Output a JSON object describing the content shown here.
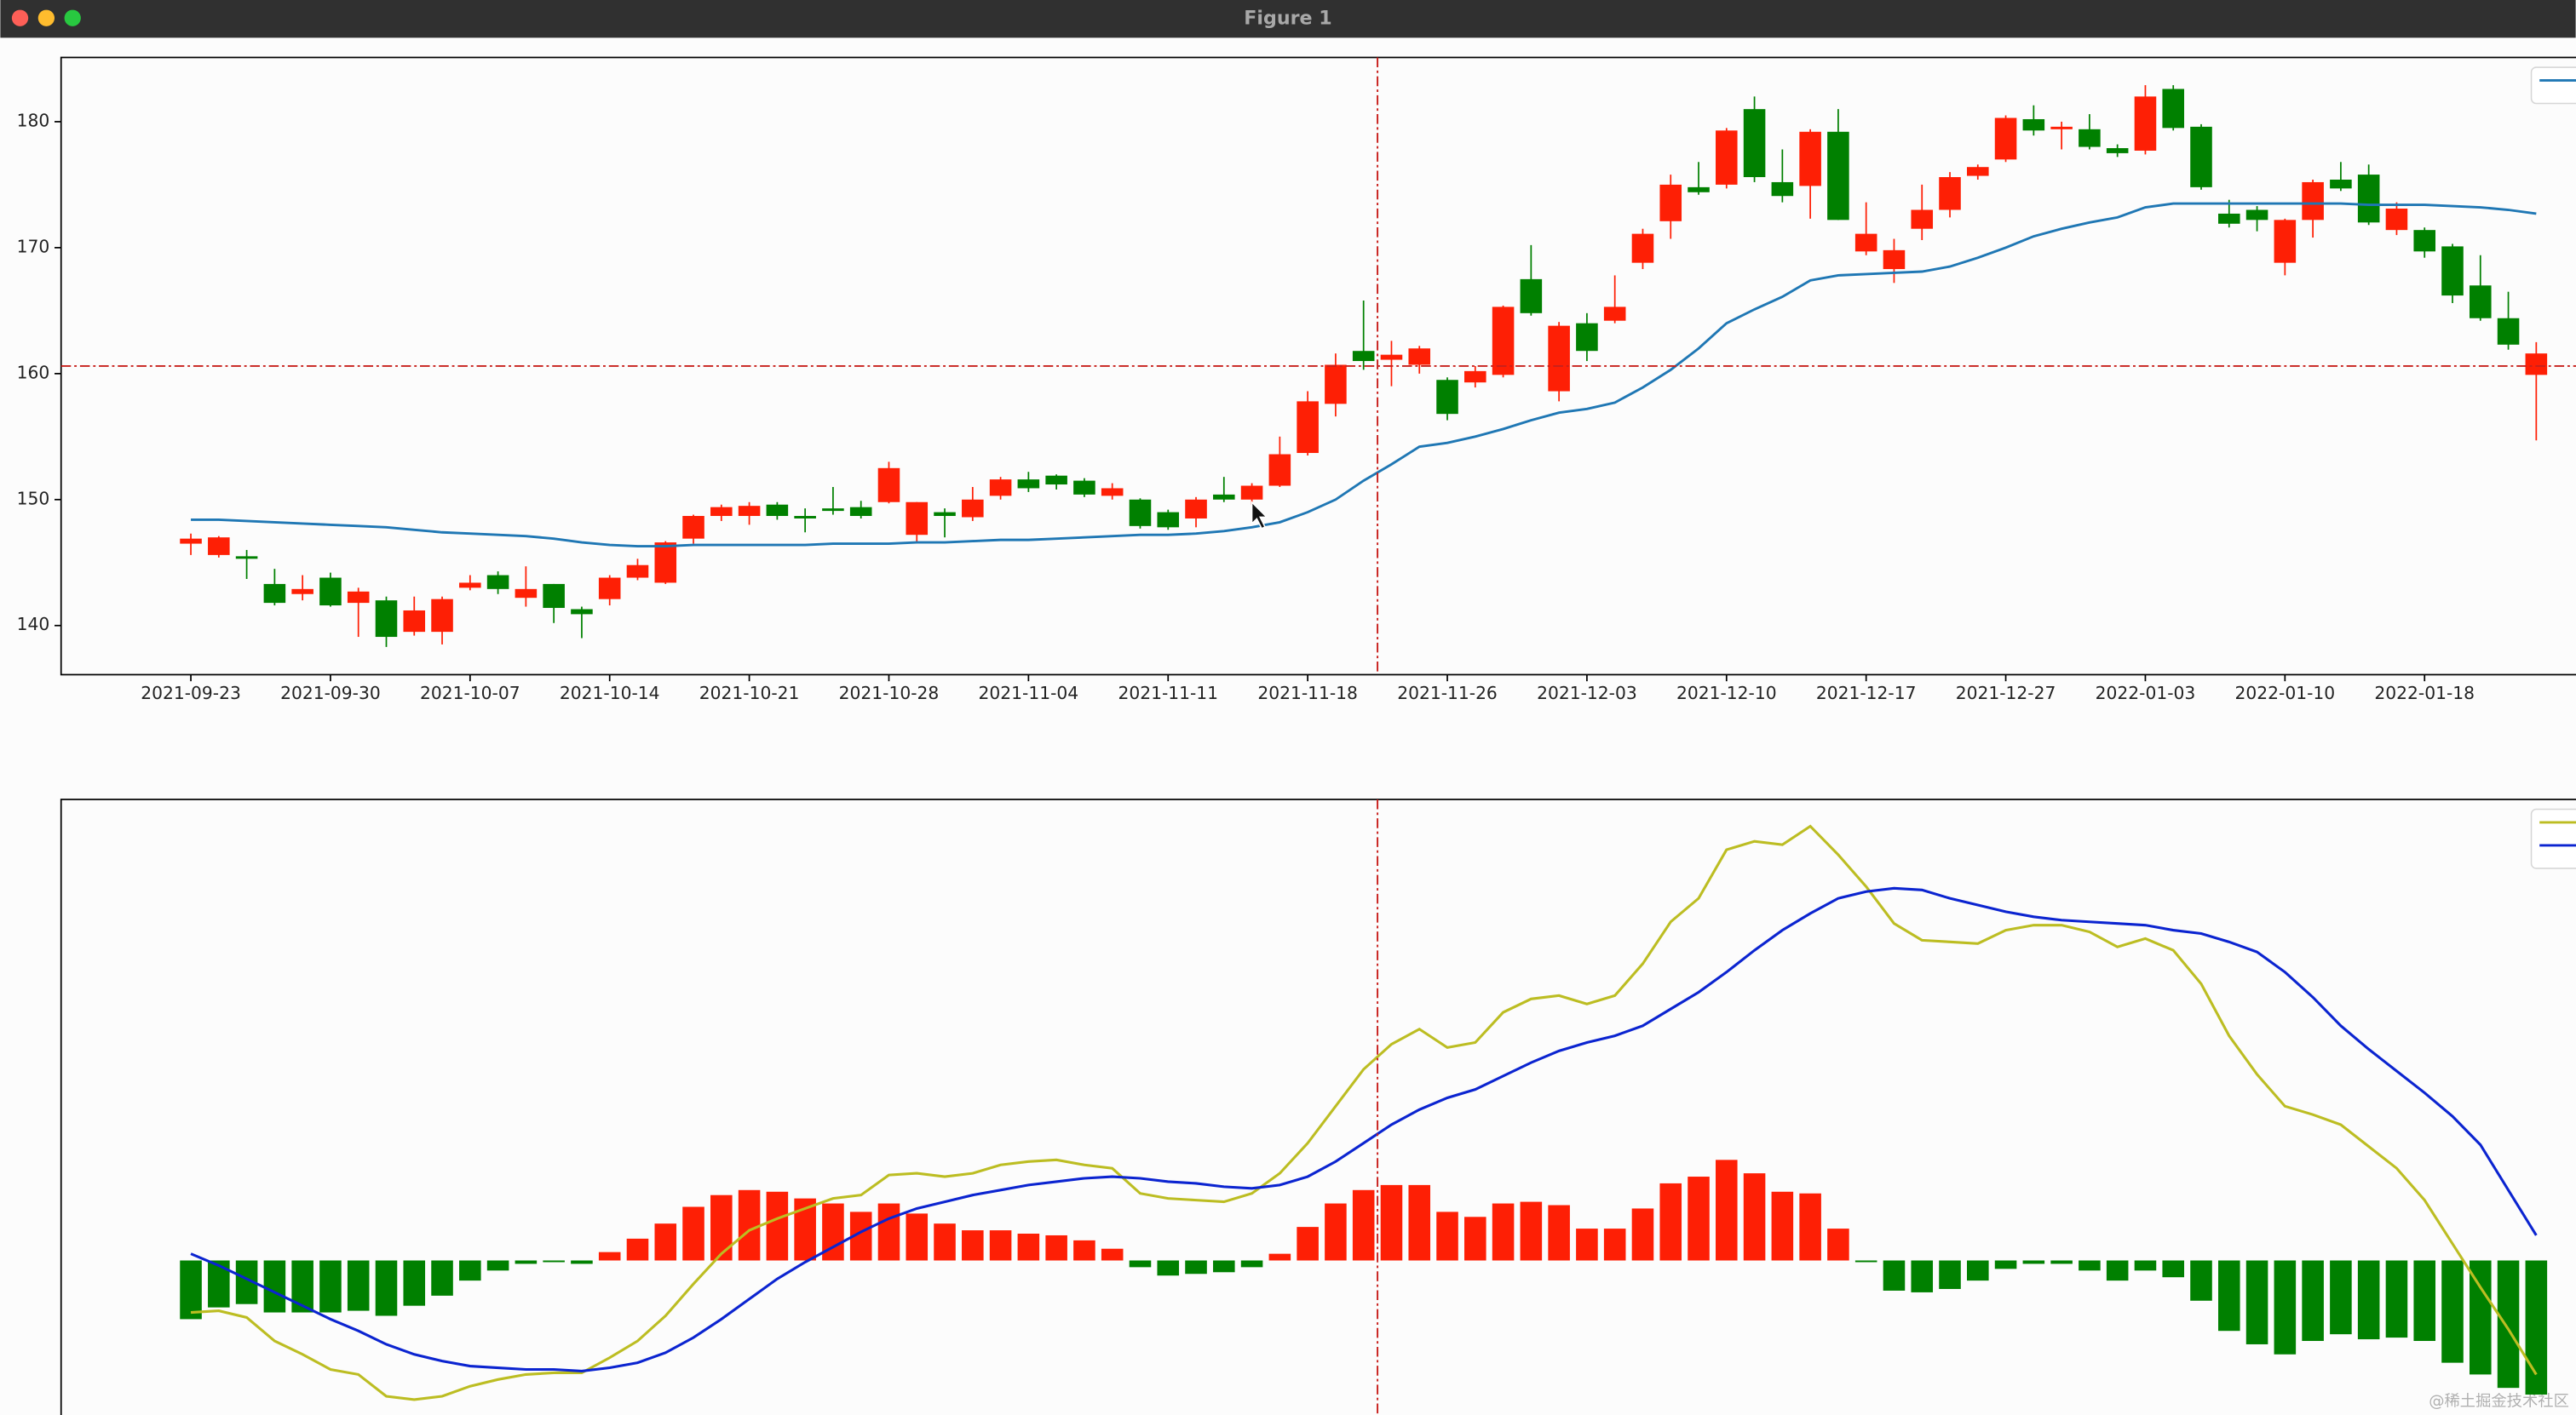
{
  "window": {
    "title": "Figure 1"
  },
  "watermark": "@稀土掘金技术社区",
  "chart_data": [
    {
      "type": "candlestick",
      "categories": [
        "2021-09-23",
        null,
        null,
        null,
        null,
        "2021-09-30",
        null,
        null,
        null,
        null,
        "2021-10-07",
        null,
        null,
        null,
        null,
        "2021-10-14",
        null,
        null,
        null,
        null,
        "2021-10-21",
        null,
        null,
        null,
        null,
        "2021-10-28",
        null,
        null,
        null,
        null,
        "2021-11-04",
        null,
        null,
        null,
        null,
        "2021-11-11",
        null,
        null,
        null,
        null,
        "2021-11-18",
        null,
        null,
        null,
        null,
        "2021-11-26",
        null,
        null,
        null,
        null,
        "2021-12-03",
        null,
        null,
        null,
        null,
        "2021-12-10",
        null,
        null,
        null,
        null,
        "2021-12-17",
        null,
        null,
        null,
        null,
        "2021-12-27",
        null,
        null,
        null,
        null,
        "2022-01-03",
        null,
        null,
        null,
        null,
        "2022-01-10",
        null,
        null,
        null,
        null,
        "2022-01-18",
        null,
        null,
        null,
        null
      ],
      "open": [
        146.5,
        145.6,
        145.5,
        143.3,
        142.5,
        143.8,
        141.8,
        142.0,
        139.5,
        139.5,
        143.0,
        144.0,
        142.2,
        143.3,
        141.3,
        142.1,
        143.8,
        143.4,
        146.9,
        148.7,
        148.7,
        149.6,
        148.7,
        149.3,
        149.4,
        149.8,
        147.2,
        149.0,
        148.6,
        150.3,
        151.6,
        151.9,
        151.5,
        150.3,
        150.0,
        149.0,
        148.5,
        150.4,
        150.0,
        151.1,
        153.7,
        157.6,
        161.8,
        161.1,
        160.7,
        159.5,
        159.3,
        159.9,
        167.5,
        158.6,
        164.0,
        164.2,
        168.8,
        172.1,
        174.8,
        175.0,
        181.0,
        175.2,
        174.9,
        179.2,
        169.7,
        168.3,
        171.5,
        173.0,
        175.7,
        177.0,
        180.2,
        179.4,
        179.4,
        177.9,
        177.7,
        182.6,
        179.6,
        172.7,
        173.0,
        168.8,
        172.2,
        175.4,
        175.8,
        171.4,
        171.4,
        170.1,
        167.0,
        164.4,
        159.9
      ],
      "high": [
        147.3,
        147.1,
        146.0,
        144.5,
        144.0,
        144.2,
        143.0,
        142.3,
        142.3,
        142.3,
        144.0,
        144.3,
        144.7,
        143.3,
        141.5,
        144.0,
        145.3,
        146.7,
        148.8,
        149.6,
        149.8,
        149.8,
        149.3,
        151.0,
        149.9,
        153.0,
        149.8,
        149.3,
        151.0,
        151.8,
        152.2,
        152.0,
        151.7,
        151.3,
        150.1,
        149.2,
        150.2,
        151.8,
        151.3,
        155.0,
        158.6,
        161.6,
        165.8,
        162.6,
        162.2,
        159.7,
        160.6,
        165.4,
        170.2,
        164.1,
        164.8,
        167.8,
        171.5,
        175.8,
        176.8,
        179.5,
        182.0,
        177.8,
        179.4,
        181.0,
        173.6,
        170.7,
        175.0,
        176.0,
        176.6,
        180.5,
        181.3,
        180.0,
        180.6,
        178.2,
        182.9,
        182.9,
        179.8,
        173.8,
        173.3,
        172.3,
        175.4,
        176.8,
        176.6,
        173.6,
        171.6,
        170.3,
        169.4,
        166.5,
        162.5
      ],
      "low": [
        145.6,
        145.4,
        143.7,
        141.6,
        142.0,
        141.5,
        139.1,
        138.3,
        139.2,
        138.5,
        142.8,
        142.5,
        141.5,
        140.2,
        139.0,
        141.6,
        143.6,
        143.3,
        146.5,
        148.3,
        148.0,
        148.4,
        147.4,
        148.8,
        148.5,
        149.7,
        146.6,
        147.0,
        148.3,
        150.0,
        150.6,
        150.8,
        150.2,
        150.0,
        147.7,
        147.6,
        147.8,
        149.8,
        149.6,
        151.0,
        153.5,
        156.6,
        160.3,
        159.0,
        160.0,
        156.3,
        158.9,
        159.7,
        164.6,
        157.8,
        161.0,
        164.0,
        168.3,
        170.7,
        174.2,
        174.7,
        175.2,
        173.6,
        172.3,
        172.2,
        169.4,
        167.2,
        170.6,
        172.4,
        175.4,
        176.8,
        178.9,
        177.8,
        177.8,
        177.2,
        177.4,
        179.3,
        174.6,
        171.6,
        171.3,
        167.8,
        170.8,
        174.5,
        171.8,
        171.0,
        169.2,
        165.6,
        164.2,
        161.9,
        154.7
      ],
      "close": [
        146.9,
        147.0,
        145.3,
        141.8,
        142.9,
        141.6,
        142.7,
        139.1,
        141.2,
        142.1,
        143.4,
        142.9,
        142.9,
        141.4,
        140.9,
        143.8,
        144.8,
        146.6,
        148.7,
        149.4,
        149.5,
        148.7,
        148.5,
        149.1,
        148.7,
        152.5,
        149.8,
        148.7,
        150.0,
        151.6,
        150.9,
        151.2,
        150.4,
        150.9,
        147.9,
        147.8,
        150.0,
        150.0,
        151.1,
        153.6,
        157.8,
        160.7,
        161.0,
        161.5,
        162.0,
        156.8,
        160.2,
        165.3,
        164.8,
        163.8,
        161.8,
        165.3,
        171.1,
        175.0,
        174.4,
        179.3,
        175.6,
        174.1,
        179.2,
        172.2,
        171.1,
        169.8,
        173.0,
        175.6,
        176.4,
        180.3,
        179.3,
        179.6,
        178.0,
        177.5,
        182.0,
        179.5,
        174.8,
        171.9,
        172.2,
        172.2,
        175.2,
        174.7,
        172.0,
        173.1,
        169.7,
        166.2,
        164.4,
        162.3,
        161.6
      ],
      "up_color": "#fe1f05",
      "down_color": "#008000",
      "series": [
        {
          "color": "#1f77b4",
          "values": [
            148.4,
            148.4,
            148.3,
            148.2,
            148.1,
            148.0,
            147.9,
            147.8,
            147.6,
            147.4,
            147.3,
            147.2,
            147.1,
            146.9,
            146.6,
            146.4,
            146.3,
            146.3,
            146.4,
            146.4,
            146.4,
            146.4,
            146.4,
            146.5,
            146.5,
            146.5,
            146.6,
            146.6,
            146.7,
            146.8,
            146.8,
            146.9,
            147.0,
            147.1,
            147.2,
            147.2,
            147.3,
            147.5,
            147.8,
            148.2,
            149.0,
            150.0,
            151.5,
            152.8,
            154.2,
            154.5,
            155.0,
            155.6,
            156.3,
            156.9,
            157.2,
            157.7,
            158.9,
            160.3,
            162.0,
            164.0,
            165.1,
            166.1,
            167.4,
            167.8,
            167.9,
            168.0,
            168.1,
            168.5,
            169.2,
            170.0,
            170.9,
            171.5,
            172.0,
            172.4,
            173.2,
            173.5,
            173.5,
            173.5,
            173.5,
            173.5,
            173.5,
            173.5,
            173.4,
            173.4,
            173.4,
            173.3,
            173.2,
            173.0,
            172.7
          ]
        }
      ],
      "ylim": [
        136.1,
        185.1
      ],
      "yticks": [
        140,
        150,
        160,
        170,
        180
      ],
      "legend": "upper right",
      "cursor": {
        "x": 42.5,
        "y": 160.6,
        "color": "#c8201c"
      }
    },
    {
      "type": "macd",
      "histogram": [
        -0.35,
        -0.28,
        -0.26,
        -0.31,
        -0.31,
        -0.31,
        -0.3,
        -0.33,
        -0.27,
        -0.21,
        -0.12,
        -0.06,
        -0.02,
        -0.01,
        -0.02,
        0.05,
        0.13,
        0.22,
        0.32,
        0.39,
        0.42,
        0.41,
        0.37,
        0.34,
        0.29,
        0.34,
        0.28,
        0.22,
        0.18,
        0.18,
        0.16,
        0.15,
        0.12,
        0.07,
        -0.04,
        -0.09,
        -0.08,
        -0.07,
        -0.04,
        0.04,
        0.2,
        0.34,
        0.42,
        0.45,
        0.45,
        0.29,
        0.26,
        0.34,
        0.35,
        0.33,
        0.19,
        0.19,
        0.31,
        0.46,
        0.5,
        0.6,
        0.52,
        0.41,
        0.4,
        0.19,
        -0.01,
        -0.18,
        -0.19,
        -0.17,
        -0.12,
        -0.05,
        -0.02,
        -0.02,
        -0.06,
        -0.12,
        -0.06,
        -0.1,
        -0.24,
        -0.42,
        -0.5,
        -0.56,
        -0.48,
        -0.44,
        -0.47,
        -0.46,
        -0.48,
        -0.61,
        -0.68,
        -0.76,
        -0.8
      ],
      "up_color": "#fe1f05",
      "down_color": "#008000",
      "series": [
        {
          "color": "#bcbd22",
          "values": [
            -0.31,
            -0.3,
            -0.34,
            -0.48,
            -0.56,
            -0.65,
            -0.68,
            -0.81,
            -0.83,
            -0.81,
            -0.75,
            -0.71,
            -0.68,
            -0.67,
            -0.67,
            -0.58,
            -0.48,
            -0.33,
            -0.14,
            0.04,
            0.18,
            0.25,
            0.31,
            0.37,
            0.39,
            0.51,
            0.52,
            0.5,
            0.52,
            0.57,
            0.59,
            0.6,
            0.57,
            0.55,
            0.4,
            0.37,
            0.36,
            0.35,
            0.4,
            0.52,
            0.7,
            0.92,
            1.14,
            1.29,
            1.38,
            1.27,
            1.3,
            1.48,
            1.56,
            1.58,
            1.53,
            1.58,
            1.77,
            2.02,
            2.16,
            2.45,
            2.5,
            2.48,
            2.59,
            2.42,
            2.23,
            2.01,
            1.91,
            1.9,
            1.89,
            1.97,
            2.0,
            2.0,
            1.96,
            1.87,
            1.92,
            1.85,
            1.65,
            1.34,
            1.11,
            0.92,
            0.87,
            0.81,
            0.68,
            0.55,
            0.36,
            0.1,
            -0.16,
            -0.41,
            -0.68
          ]
        },
        {
          "color": "#0b24d0",
          "values": [
            0.04,
            -0.03,
            -0.11,
            -0.19,
            -0.27,
            -0.35,
            -0.42,
            -0.5,
            -0.56,
            -0.6,
            -0.63,
            -0.64,
            -0.65,
            -0.65,
            -0.66,
            -0.64,
            -0.61,
            -0.55,
            -0.46,
            -0.35,
            -0.23,
            -0.11,
            -0.01,
            0.08,
            0.17,
            0.25,
            0.31,
            0.35,
            0.39,
            0.42,
            0.45,
            0.47,
            0.49,
            0.5,
            0.49,
            0.47,
            0.46,
            0.44,
            0.43,
            0.45,
            0.5,
            0.59,
            0.7,
            0.81,
            0.9,
            0.97,
            1.02,
            1.1,
            1.18,
            1.25,
            1.3,
            1.34,
            1.4,
            1.5,
            1.6,
            1.72,
            1.85,
            1.97,
            2.07,
            2.16,
            2.2,
            2.22,
            2.21,
            2.16,
            2.12,
            2.08,
            2.05,
            2.03,
            2.02,
            2.01,
            2.0,
            1.97,
            1.95,
            1.9,
            1.84,
            1.72,
            1.57,
            1.4,
            1.26,
            1.13,
            1.0,
            0.86,
            0.69,
            0.42,
            0.15
          ]
        }
      ],
      "ylim": [
        -1.0,
        2.75
      ],
      "legend": "upper right",
      "cursor": {
        "x": 42.5,
        "color": "#c8201c"
      }
    }
  ]
}
